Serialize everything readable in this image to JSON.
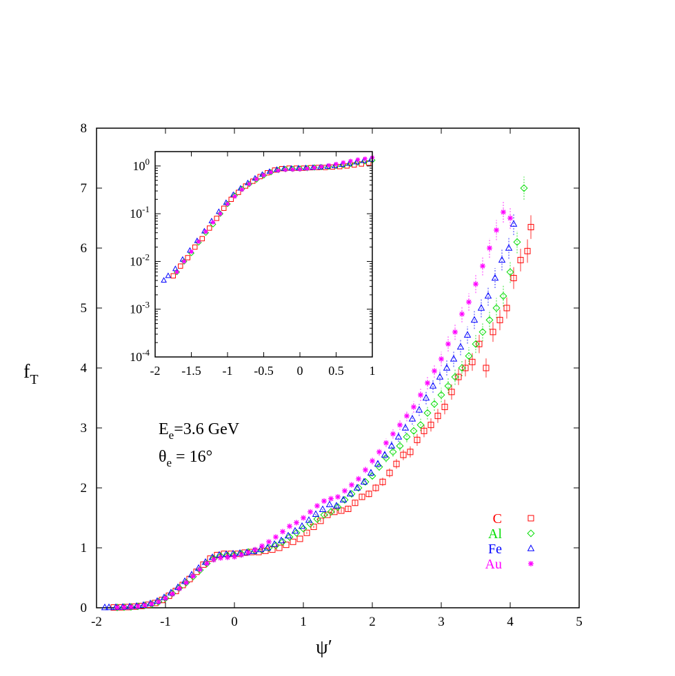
{
  "chart_data": {
    "type": "scatter",
    "xlabel": "ψ′",
    "ylabel": "f",
    "ylabel_sub": "T",
    "xlim": [
      -2,
      5
    ],
    "ylim": [
      0,
      8
    ],
    "xticks": [
      -2,
      -1,
      0,
      1,
      2,
      3,
      4,
      5
    ],
    "yticks": [
      0,
      1,
      2,
      3,
      4,
      5,
      6,
      7,
      8
    ],
    "grid": false,
    "legend_placement": "bottom-right",
    "annotations": {
      "energy": {
        "main": "E",
        "sub": "e",
        "rest": "=3.6 GeV"
      },
      "angle": {
        "main": "θ",
        "sub": "e",
        "rest": " = 16°"
      }
    },
    "series": [
      {
        "name": "C",
        "color": "#ff0000",
        "marker": "square",
        "x": [
          -1.75,
          -1.65,
          -1.55,
          -1.45,
          -1.35,
          -1.25,
          -1.15,
          -1.05,
          -0.95,
          -0.85,
          -0.75,
          -0.65,
          -0.55,
          -0.45,
          -0.35,
          -0.25,
          -0.15,
          -0.05,
          0.05,
          0.15,
          0.25,
          0.35,
          0.45,
          0.55,
          0.65,
          0.75,
          0.85,
          0.95,
          1.05,
          1.15,
          1.25,
          1.35,
          1.45,
          1.55,
          1.65,
          1.75,
          1.85,
          1.95,
          2.05,
          2.15,
          2.25,
          2.35,
          2.45,
          2.55,
          2.65,
          2.75,
          2.85,
          2.95,
          3.05,
          3.15,
          3.25,
          3.35,
          3.45,
          3.55,
          3.65,
          3.75,
          3.85,
          3.95,
          4.05,
          4.15,
          4.25,
          4.3
        ],
        "y": [
          0.005,
          0.008,
          0.012,
          0.02,
          0.03,
          0.05,
          0.08,
          0.13,
          0.2,
          0.28,
          0.38,
          0.48,
          0.6,
          0.72,
          0.82,
          0.88,
          0.9,
          0.9,
          0.9,
          0.92,
          0.93,
          0.93,
          0.95,
          0.97,
          1.0,
          1.05,
          1.1,
          1.15,
          1.25,
          1.35,
          1.45,
          1.55,
          1.6,
          1.62,
          1.65,
          1.75,
          1.85,
          1.9,
          2.0,
          2.1,
          2.25,
          2.4,
          2.55,
          2.6,
          2.8,
          2.95,
          3.05,
          3.2,
          3.35,
          3.6,
          3.85,
          4.0,
          4.1,
          4.4,
          4.0,
          4.6,
          4.8,
          5.0,
          5.5,
          5.8,
          5.95,
          6.35
        ]
      },
      {
        "name": "Al",
        "color": "#00dd00",
        "marker": "diamond",
        "x": [
          -1.7,
          -1.6,
          -1.5,
          -1.4,
          -1.3,
          -1.2,
          -1.1,
          -1.0,
          -0.9,
          -0.8,
          -0.7,
          -0.6,
          -0.5,
          -0.4,
          -0.3,
          -0.2,
          -0.1,
          0.0,
          0.1,
          0.2,
          0.3,
          0.4,
          0.5,
          0.6,
          0.7,
          0.8,
          0.9,
          1.0,
          1.1,
          1.2,
          1.3,
          1.4,
          1.5,
          1.6,
          1.7,
          1.8,
          1.9,
          2.0,
          2.1,
          2.2,
          2.3,
          2.4,
          2.5,
          2.6,
          2.7,
          2.8,
          2.9,
          3.0,
          3.1,
          3.2,
          3.3,
          3.4,
          3.5,
          3.6,
          3.7,
          3.8,
          3.9,
          4.0,
          4.1,
          4.2
        ],
        "y": [
          0.006,
          0.01,
          0.015,
          0.025,
          0.04,
          0.06,
          0.1,
          0.16,
          0.24,
          0.33,
          0.42,
          0.52,
          0.63,
          0.74,
          0.82,
          0.86,
          0.87,
          0.88,
          0.9,
          0.93,
          0.95,
          0.97,
          1.0,
          1.04,
          1.1,
          1.18,
          1.25,
          1.32,
          1.4,
          1.48,
          1.55,
          1.6,
          1.68,
          1.8,
          1.9,
          2.0,
          2.1,
          2.2,
          2.35,
          2.5,
          2.6,
          2.7,
          2.85,
          2.95,
          3.05,
          3.25,
          3.4,
          3.55,
          3.7,
          3.85,
          4.0,
          4.2,
          4.4,
          4.6,
          4.8,
          5.0,
          5.2,
          5.6,
          6.1,
          7.0
        ]
      },
      {
        "name": "Fe",
        "color": "#0000ff",
        "marker": "triangle",
        "x": [
          -1.88,
          -1.82,
          -1.72,
          -1.62,
          -1.52,
          -1.42,
          -1.32,
          -1.22,
          -1.12,
          -1.02,
          -0.92,
          -0.82,
          -0.72,
          -0.62,
          -0.52,
          -0.42,
          -0.32,
          -0.22,
          -0.12,
          -0.02,
          0.08,
          0.18,
          0.28,
          0.38,
          0.48,
          0.58,
          0.68,
          0.78,
          0.88,
          0.98,
          1.08,
          1.18,
          1.28,
          1.38,
          1.48,
          1.58,
          1.68,
          1.78,
          1.88,
          1.98,
          2.08,
          2.18,
          2.28,
          2.38,
          2.48,
          2.58,
          2.68,
          2.78,
          2.88,
          2.98,
          3.08,
          3.18,
          3.28,
          3.38,
          3.48,
          3.58,
          3.68,
          3.78,
          3.88,
          3.98,
          4.05
        ],
        "y": [
          0.004,
          0.005,
          0.007,
          0.011,
          0.017,
          0.027,
          0.043,
          0.07,
          0.11,
          0.17,
          0.25,
          0.34,
          0.44,
          0.55,
          0.66,
          0.76,
          0.84,
          0.88,
          0.89,
          0.9,
          0.91,
          0.92,
          0.94,
          0.97,
          1.0,
          1.06,
          1.12,
          1.2,
          1.28,
          1.36,
          1.46,
          1.56,
          1.64,
          1.72,
          1.7,
          1.8,
          1.9,
          2.0,
          2.1,
          2.25,
          2.4,
          2.55,
          2.7,
          2.85,
          3.0,
          3.15,
          3.3,
          3.5,
          3.7,
          3.85,
          4.0,
          4.15,
          4.35,
          4.55,
          4.8,
          5.0,
          5.2,
          5.5,
          5.8,
          6.0,
          6.4
        ]
      },
      {
        "name": "Au",
        "color": "#ff00ff",
        "marker": "star",
        "x": [
          -1.7,
          -1.6,
          -1.5,
          -1.4,
          -1.3,
          -1.2,
          -1.1,
          -1.0,
          -0.9,
          -0.8,
          -0.7,
          -0.6,
          -0.5,
          -0.4,
          -0.3,
          -0.2,
          -0.1,
          0.0,
          0.1,
          0.2,
          0.3,
          0.4,
          0.5,
          0.6,
          0.7,
          0.8,
          0.9,
          1.0,
          1.1,
          1.2,
          1.3,
          1.4,
          1.5,
          1.6,
          1.7,
          1.8,
          1.9,
          2.0,
          2.1,
          2.2,
          2.3,
          2.4,
          2.5,
          2.6,
          2.7,
          2.8,
          2.9,
          3.0,
          3.1,
          3.2,
          3.3,
          3.4,
          3.5,
          3.6,
          3.7,
          3.8,
          3.9,
          4.0
        ],
        "y": [
          0.006,
          0.01,
          0.016,
          0.026,
          0.042,
          0.066,
          0.1,
          0.16,
          0.23,
          0.32,
          0.42,
          0.53,
          0.64,
          0.74,
          0.8,
          0.83,
          0.84,
          0.85,
          0.88,
          0.92,
          0.97,
          1.03,
          1.1,
          1.18,
          1.27,
          1.36,
          1.42,
          1.5,
          1.6,
          1.7,
          1.78,
          1.82,
          1.85,
          1.95,
          2.05,
          2.15,
          2.3,
          2.45,
          2.6,
          2.75,
          2.9,
          3.05,
          3.2,
          3.35,
          3.55,
          3.75,
          3.95,
          4.15,
          4.4,
          4.6,
          4.9,
          5.1,
          5.4,
          5.7,
          6.0,
          6.3,
          6.6,
          6.5
        ]
      }
    ],
    "inset": {
      "type": "scatter",
      "yscale": "log",
      "xlim": [
        -2,
        1
      ],
      "ylim": [
        0.0001,
        2
      ],
      "xticks": [
        -2,
        -1.5,
        -1,
        -0.5,
        0,
        0.5,
        1
      ],
      "yticks": [
        {
          "value": 1,
          "base": "10",
          "exp": "0"
        },
        {
          "value": 0.1,
          "base": "10",
          "exp": "-1"
        },
        {
          "value": 0.01,
          "base": "10",
          "exp": "-2"
        },
        {
          "value": 0.001,
          "base": "10",
          "exp": "-3"
        },
        {
          "value": 0.0001,
          "base": "10",
          "exp": "-4"
        }
      ]
    }
  }
}
